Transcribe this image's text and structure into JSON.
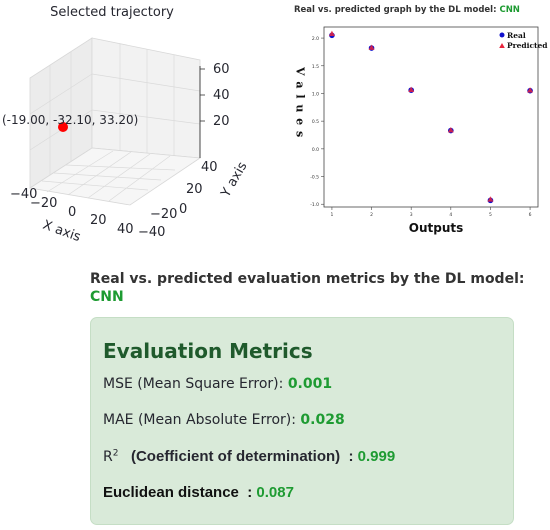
{
  "trajectory_plot": {
    "title": "Selected trajectory",
    "point_label": "(-19.00, -32.10, 33.20)",
    "x_axis_label": "X axis",
    "y_axis_label": "Y axis",
    "x_ticks": [
      "−40",
      "−20",
      "0",
      "20",
      "40"
    ],
    "y_ticks": [
      "−40",
      "−20",
      "0",
      "20",
      "40"
    ],
    "z_ticks": [
      "20",
      "40",
      "60"
    ],
    "point_color": "#ff0000"
  },
  "chart_data": {
    "type": "scatter",
    "title": "Real vs. predicted graph by the DL model:",
    "model_name": "CNN",
    "xlabel": "Outputs",
    "ylabel": "V a l u e s",
    "x_ticks": [
      "1",
      "2",
      "3",
      "4",
      "5",
      "6"
    ],
    "y_ticks": [
      "2.0",
      "1.5",
      "1.0",
      "0.5",
      "0.0",
      "-0.5",
      "-1.0"
    ],
    "ylim": [
      -1.05,
      2.2
    ],
    "xlim": [
      0.8,
      6.2
    ],
    "legend_position": "top-right",
    "series": [
      {
        "name": "Real",
        "marker": "circle",
        "color": "#1010cc",
        "x": [
          1,
          2,
          3,
          4,
          5,
          6
        ],
        "values": [
          2.05,
          1.82,
          1.06,
          0.33,
          -0.93,
          1.05
        ]
      },
      {
        "name": "Predicted",
        "marker": "triangle",
        "color": "#e8243c",
        "x": [
          1,
          2,
          3,
          4,
          5,
          6
        ],
        "values": [
          2.08,
          1.83,
          1.07,
          0.34,
          -0.91,
          1.06
        ]
      }
    ]
  },
  "metrics": {
    "header_text": "Real vs. predicted evaluation metrics by the DL model:",
    "model_name": "CNN",
    "box_title": "Evaluation Metrics",
    "mse_label": "MSE (Mean Square Error):",
    "mse_value": "0.001",
    "mae_label": "MAE (Mean Absolute Error):",
    "mae_value": "0.028",
    "r2_symbol": "R",
    "r2_sup": "2",
    "r2_label": "(Coefficient of determination)",
    "r2_sep": ":",
    "r2_value": "0.999",
    "ed_label": "Euclidean distance",
    "ed_sep": ":",
    "ed_value": "0.087",
    "value_color": "#1e9b32"
  }
}
